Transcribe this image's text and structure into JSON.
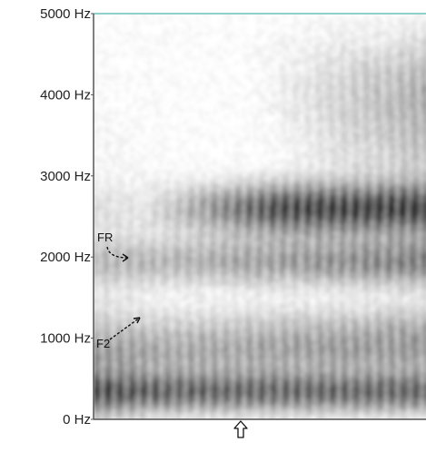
{
  "chart_data": {
    "type": "heatmap",
    "title": "",
    "xlabel": "",
    "ylabel": "",
    "y_ticks": [
      "5000 Hz",
      "4000 Hz",
      "3000 Hz",
      "2000 Hz",
      "1000 Hz",
      "0 Hz"
    ],
    "y_tick_values": [
      5000,
      4000,
      3000,
      2000,
      1000,
      0
    ],
    "ylim": [
      0,
      5000
    ],
    "grid": false,
    "colormap": [
      "#ffffff",
      "#1a1a1a"
    ],
    "frame_color": "#8fd0c8",
    "annotations": [
      {
        "label": "FR",
        "freq_hz": 2000
      },
      {
        "label": "F2",
        "freq_hz": 1200
      }
    ],
    "marker": {
      "icon": "up-arrow-icon",
      "position": "bottom-center"
    }
  }
}
